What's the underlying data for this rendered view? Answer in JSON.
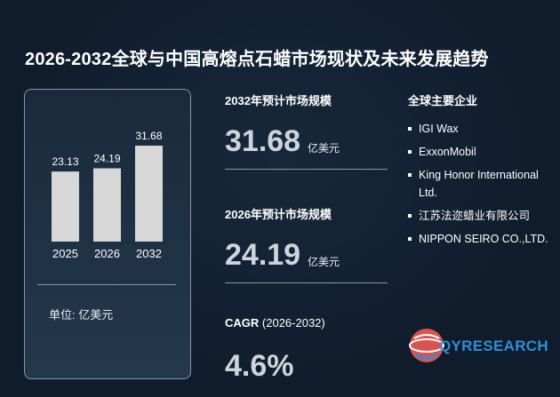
{
  "title": "2026-2032全球与中国高熔点石蜡市场现状及未来发展趋势",
  "chart_data": {
    "type": "bar",
    "categories": [
      "2025",
      "2026",
      "2032"
    ],
    "values": [
      23.13,
      24.19,
      31.68
    ],
    "value_labels": [
      "23.13",
      "24.19",
      "31.68"
    ],
    "unit": "单位: 亿美元",
    "grid": false,
    "bar_color": "#d8d8d8"
  },
  "metrics": {
    "m2032": {
      "label": "2032年预计市场规模",
      "value": "31.68",
      "unit": "亿美元"
    },
    "m2026": {
      "label": "2026年预计市场规模",
      "value": "24.19",
      "unit": "亿美元"
    },
    "cagr": {
      "label": "CAGR",
      "period": "(2026-2032)",
      "value": "4.6%"
    }
  },
  "companies": {
    "title": "全球主要企业",
    "items": [
      "IGI Wax",
      "ExxonMobil",
      "King Honor International Ltd.",
      "江苏法迩蜡业有限公司",
      "NIPPON SEIRO CO.,LTD."
    ]
  },
  "logo": {
    "icon": "globe-logo-icon",
    "brand": "QYRESEARCH",
    "color": "#2f8fd8"
  }
}
